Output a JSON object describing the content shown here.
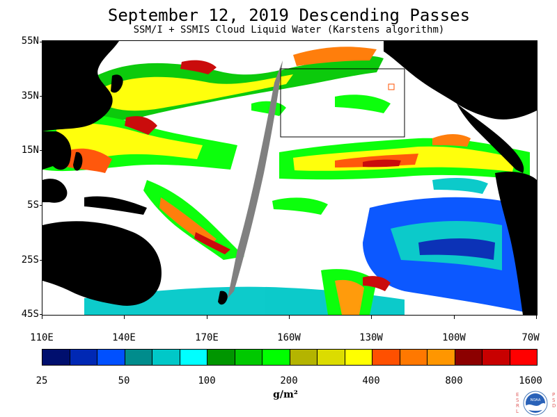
{
  "title": "September 12, 2019  Descending Passes",
  "subtitle": "SSM/I + SSMIS Cloud Liquid Water (Karstens algorithm)",
  "lat_labels": [
    "55N",
    "35N",
    "15N",
    "5S",
    "25S",
    "45S"
  ],
  "lon_labels": [
    "110E",
    "140E",
    "170E",
    "160W",
    "130W",
    "100W",
    "70W"
  ],
  "colorbar": {
    "colors": [
      "#000f6e",
      "#0028b4",
      "#0050ff",
      "#008c8c",
      "#00c8c8",
      "#00ffff",
      "#009600",
      "#00c800",
      "#00ff00",
      "#b4b400",
      "#dcdc00",
      "#ffff00",
      "#ff5000",
      "#ff7800",
      "#ff9600",
      "#8c0000",
      "#c80000",
      "#ff0000"
    ],
    "tick_labels": [
      "25",
      "50",
      "100",
      "200",
      "400",
      "800",
      "1600"
    ],
    "units": "g/m²"
  },
  "logo": {
    "left_letters": "ESRL",
    "right_letters": "PSD",
    "emblem_text": "NOAA"
  },
  "colors": {
    "land": "#000000",
    "missing_swath": "#808080",
    "background": "#ffffff"
  }
}
